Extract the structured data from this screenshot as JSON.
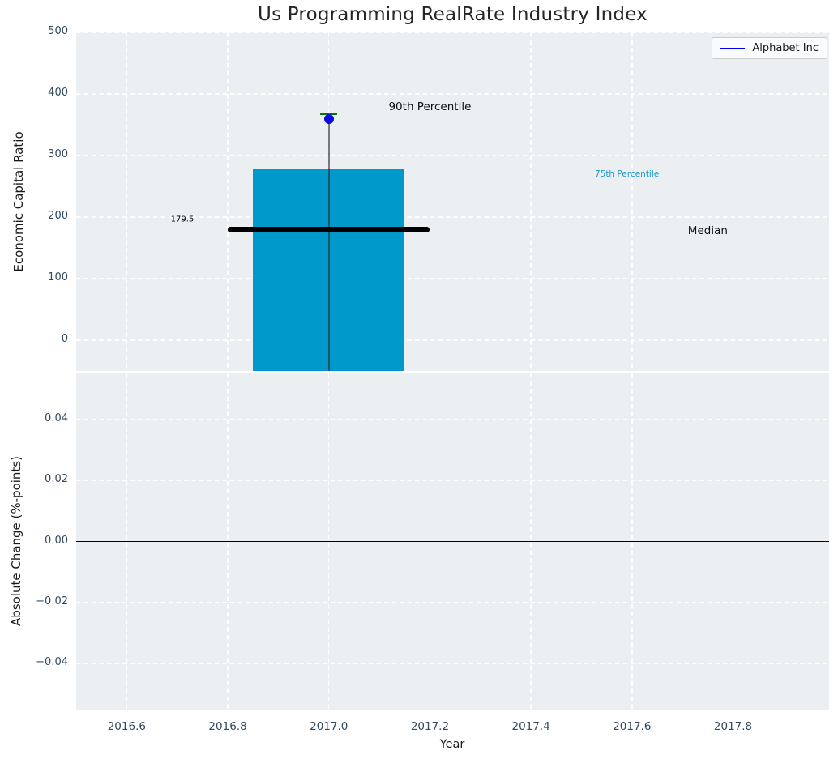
{
  "style": {
    "axes_bg": "#eceff1",
    "grid_color": "#ffffff",
    "tick_label_color": "#34495e",
    "bar_color": "#0099cc",
    "dot_color": "#0b0be0",
    "p90_tick_color": "#007d00",
    "median_color": "#000000",
    "legend_line_color": "#0000e6"
  },
  "chart_data": [
    {
      "type": "bar",
      "title": "Us Programming RealRate Industry Index",
      "ylabel": "Economic Capital Ratio",
      "xlabel": "",
      "xlim": [
        2016.5,
        2017.99
      ],
      "ylim": [
        -50,
        500
      ],
      "grid": true,
      "yticks": [
        0,
        100,
        200,
        300,
        400,
        500
      ],
      "ytick_labels": [
        "0",
        "100",
        "200",
        "300",
        "400",
        "500"
      ],
      "xticks": [
        2016.6,
        2016.8,
        2017.0,
        2017.2,
        2017.4,
        2017.6,
        2017.8
      ],
      "show_xtick_labels": false,
      "legend": {
        "label": "Alphabet Inc",
        "position": "upper right"
      },
      "series": [
        {
          "name": "Alphabet Inc",
          "x": 2017.0,
          "company_value": 359,
          "percentile_90": 368,
          "percentile_75_bar_top": 277,
          "bar_bottom": -50,
          "median": 179.5,
          "bar_width": 0.3,
          "median_line_width": 0.4
        }
      ],
      "annotations": [
        {
          "name": "median-value-label",
          "text": "179.5",
          "x": 2016.71,
          "y": 196,
          "color": "#000000",
          "size": 10
        },
        {
          "name": "p90-label",
          "text": "90th Percentile",
          "x": 2017.2,
          "y": 379,
          "color": "#111111",
          "size": 13.5
        },
        {
          "name": "p75-label",
          "text": "75th Percentile",
          "x": 2017.59,
          "y": 270,
          "color": "#1899c9",
          "size": 10.5
        },
        {
          "name": "median-label",
          "text": "Median",
          "x": 2017.75,
          "y": 178,
          "color": "#111111",
          "size": 13.5
        }
      ]
    },
    {
      "type": "line",
      "title": "",
      "ylabel": "Absolute Change (%-points)",
      "xlabel": "Year",
      "xlim": [
        2016.5,
        2017.99
      ],
      "ylim": [
        -0.055,
        0.055
      ],
      "grid": true,
      "yticks": [
        -0.04,
        -0.02,
        0,
        0.02,
        0.04
      ],
      "ytick_labels": [
        "−0.04",
        "−0.02",
        "0.00",
        "0.02",
        "0.04"
      ],
      "xticks": [
        2016.6,
        2016.8,
        2017.0,
        2017.2,
        2017.4,
        2017.6,
        2017.8
      ],
      "xtick_labels": [
        "2016.6",
        "2016.8",
        "2017.0",
        "2017.2",
        "2017.4",
        "2017.6",
        "2017.8"
      ],
      "show_xtick_labels": true,
      "zero_line": 0.0,
      "series": []
    }
  ]
}
